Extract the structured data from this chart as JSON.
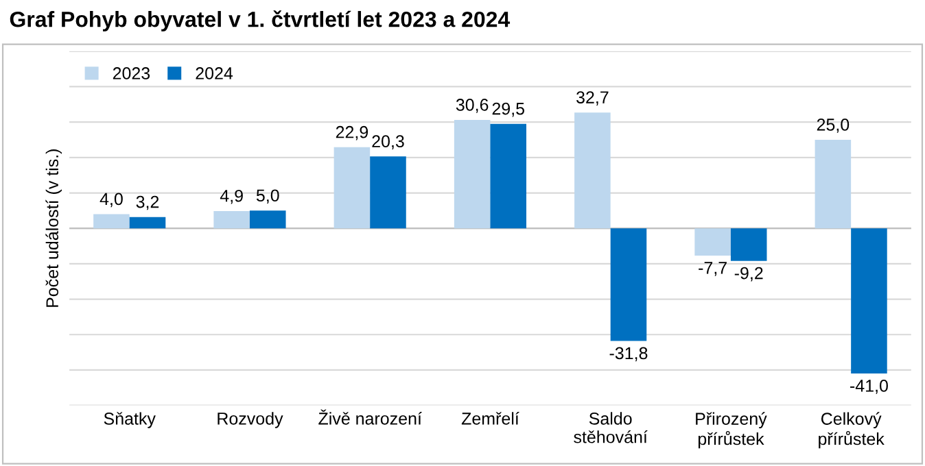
{
  "chart_data": {
    "type": "bar",
    "title": "Graf Pohyb obyvatel v 1. čtvrtletí let 2023 a 2024",
    "ylabel": "Počet událostí (v tis.)",
    "categories": [
      "Sňatky",
      "Rozvody",
      "Živě narození",
      "Zemřelí",
      "Saldo\nstěhování",
      "Přirozený\npřírůstek",
      "Celkový\npřírůstek"
    ],
    "series": [
      {
        "name": "2023",
        "color": "#bdd7ee",
        "values": [
          4.0,
          4.9,
          22.9,
          30.6,
          32.7,
          -7.7,
          25.0
        ],
        "value_labels": [
          "4,0",
          "4,9",
          "22,9",
          "30,6",
          "32,7",
          "-7,7",
          "25,0"
        ]
      },
      {
        "name": "2024",
        "color": "#0070c0",
        "values": [
          3.2,
          5.0,
          20.3,
          29.5,
          -31.8,
          -9.2,
          -41.0
        ],
        "value_labels": [
          "3,2",
          "5,0",
          "20,3",
          "29,5",
          "-31,8",
          "-9,2",
          "-41,0"
        ]
      }
    ],
    "ylim": [
      -50,
      50
    ],
    "yticks": [
      {
        "value": -50,
        "label": null
      },
      {
        "value": -40,
        "label": null
      },
      {
        "value": -30,
        "label": null
      },
      {
        "value": -20,
        "label": null
      },
      {
        "value": -10,
        "label": null
      },
      {
        "value": 0,
        "label": null
      },
      {
        "value": 10,
        "label": null
      },
      {
        "value": 20,
        "label": null
      },
      {
        "value": 30,
        "label": null
      },
      {
        "value": 40,
        "label": null
      },
      {
        "value": 50,
        "label": null
      }
    ],
    "tick_labels": "x",
    "grid": "y",
    "legend": "top left"
  }
}
